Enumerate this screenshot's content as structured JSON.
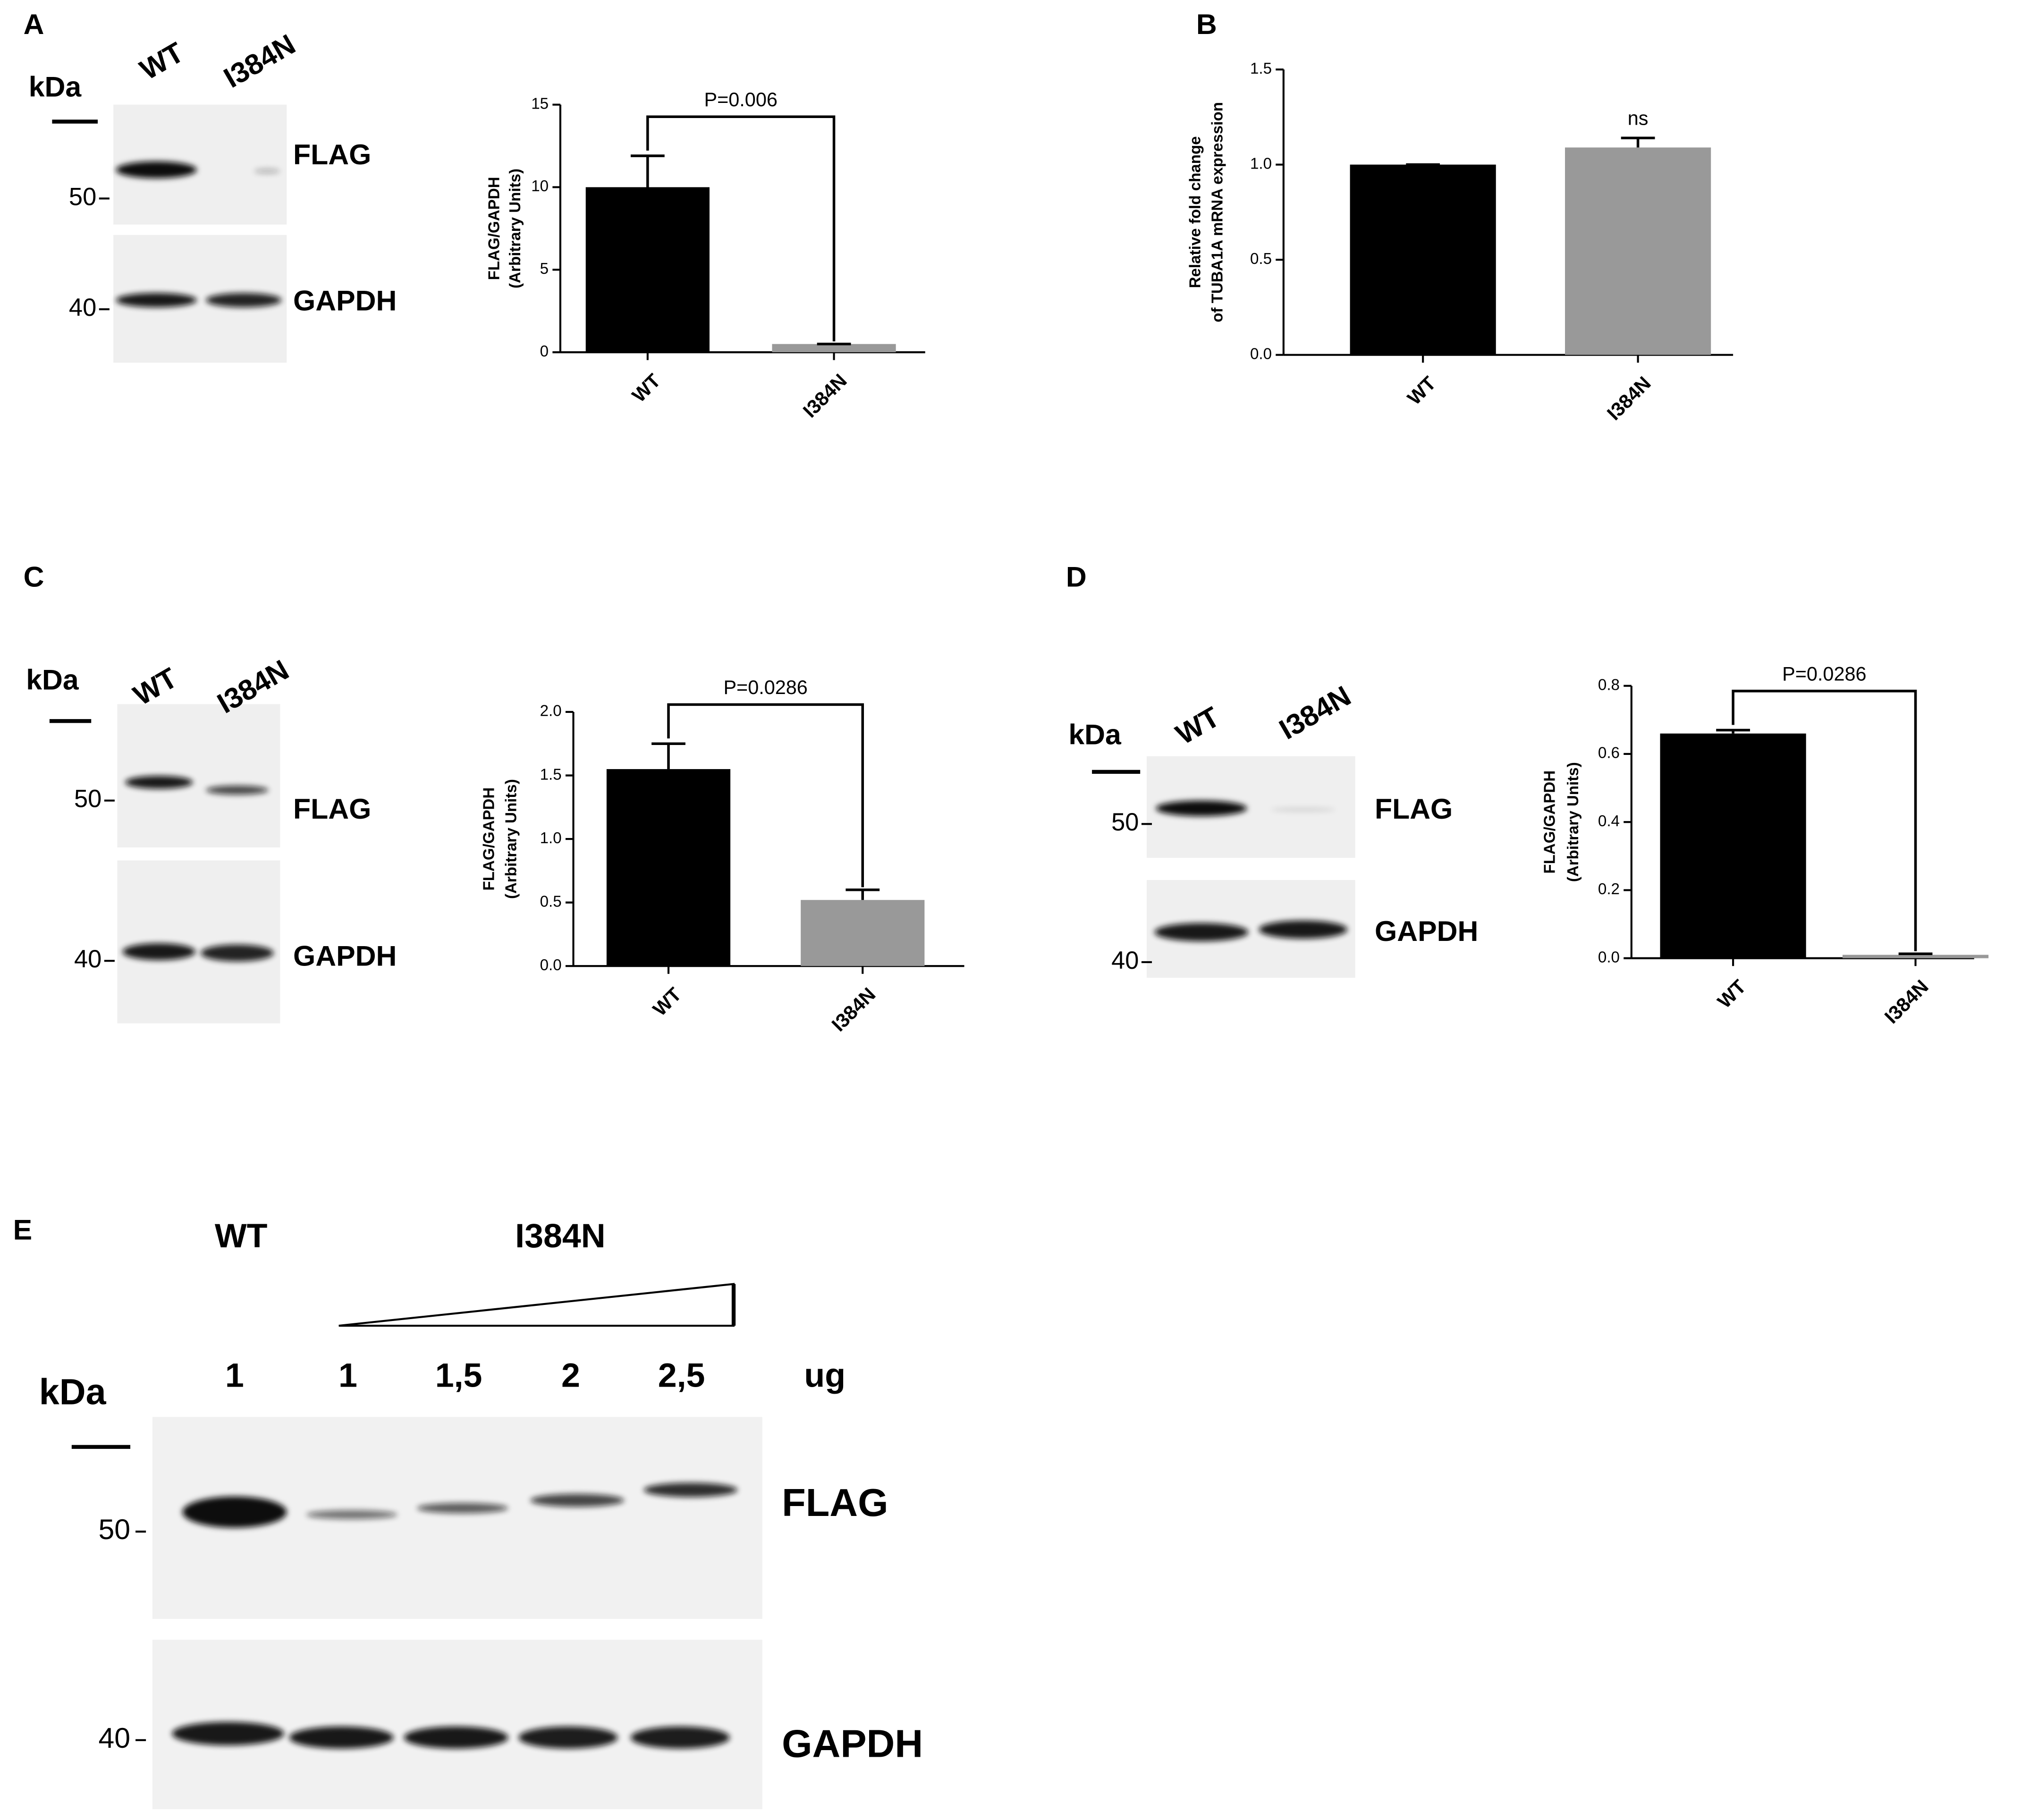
{
  "chart_data": [
    {
      "type": "bar",
      "panel": "A",
      "ylabel": [
        "FLAG/GAPDH",
        "(Arbitrary Units)"
      ],
      "categories": [
        "WT",
        "I384N"
      ],
      "values": [
        10,
        0.5
      ],
      "errors": [
        1.9,
        0
      ],
      "colors": [
        "#000000",
        "#999999"
      ],
      "ylim": [
        0,
        15
      ],
      "yticks": [
        0,
        5,
        10,
        15
      ],
      "annotation": "P=0.006"
    },
    {
      "type": "bar",
      "panel": "B",
      "ylabel": [
        "Relative fold change",
        "of TUBA1A mRNA expression"
      ],
      "categories": [
        "WT",
        "I384N"
      ],
      "values": [
        1.0,
        1.09
      ],
      "errors": [
        0,
        0.05
      ],
      "colors": [
        "#000000",
        "#999999"
      ],
      "ylim": [
        0,
        1.5
      ],
      "yticks": [
        {
          "value": 0,
          "label": "0.0"
        },
        {
          "value": 0.5,
          "label": "0.5"
        },
        {
          "value": 1,
          "label": "1.0"
        },
        1.5
      ],
      "annotation": "ns"
    },
    {
      "type": "bar",
      "panel": "C",
      "ylabel": [
        "FLAG/GAPDH",
        "(Arbitrary Units)"
      ],
      "categories": [
        "WT",
        "I384N"
      ],
      "values": [
        1.55,
        0.52
      ],
      "errors": [
        0.2,
        0.08
      ],
      "colors": [
        "#000000",
        "#999999"
      ],
      "ylim": [
        0,
        2
      ],
      "yticks": [
        {
          "value": 0,
          "label": "0.0"
        },
        0.5,
        {
          "value": 1,
          "label": "1.0"
        },
        1.5,
        {
          "value": 2,
          "label": "2.0"
        }
      ],
      "annotation": "P=0.0286"
    },
    {
      "type": "bar",
      "panel": "D",
      "ylabel": [
        "FLAG/GAPDH",
        "(Arbitrary Units)"
      ],
      "categories": [
        "WT",
        "I384N"
      ],
      "values": [
        0.66,
        0.01
      ],
      "errors": [
        0.01,
        0.003
      ],
      "colors": [
        "#000000",
        "#999999"
      ],
      "ylim": [
        0,
        0.8
      ],
      "yticks": [
        {
          "value": 0,
          "label": "0.0"
        },
        0.2,
        0.4,
        0.6,
        0.8
      ],
      "annotation": "P=0.0286"
    }
  ],
  "blots": [
    {
      "unit": "kDa",
      "lanes": [
        "WT",
        "I384N"
      ],
      "markers": [
        "50",
        "40"
      ],
      "bands": [
        "FLAG",
        "GAPDH"
      ]
    },
    {
      "unit": "kDa",
      "lanes": [
        "WT",
        "I384N"
      ],
      "markers": [
        "50",
        "40"
      ],
      "bands": [
        "FLAG",
        "GAPDH"
      ]
    },
    {
      "unit": "kDa",
      "lanes": [
        "WT",
        "I384N"
      ],
      "markers": [
        "50",
        "40"
      ],
      "bands": [
        "FLAG",
        "GAPDH"
      ]
    }
  ],
  "panel_e": {
    "panel": "E",
    "groups": [
      "WT",
      "I384N"
    ],
    "amounts": [
      "1",
      "1",
      "1,5",
      "2",
      "2,5"
    ],
    "amount_unit": "ug",
    "unit": "kDa",
    "markers": [
      "50",
      "40"
    ],
    "bands": [
      "FLAG",
      "GAPDH"
    ]
  }
}
